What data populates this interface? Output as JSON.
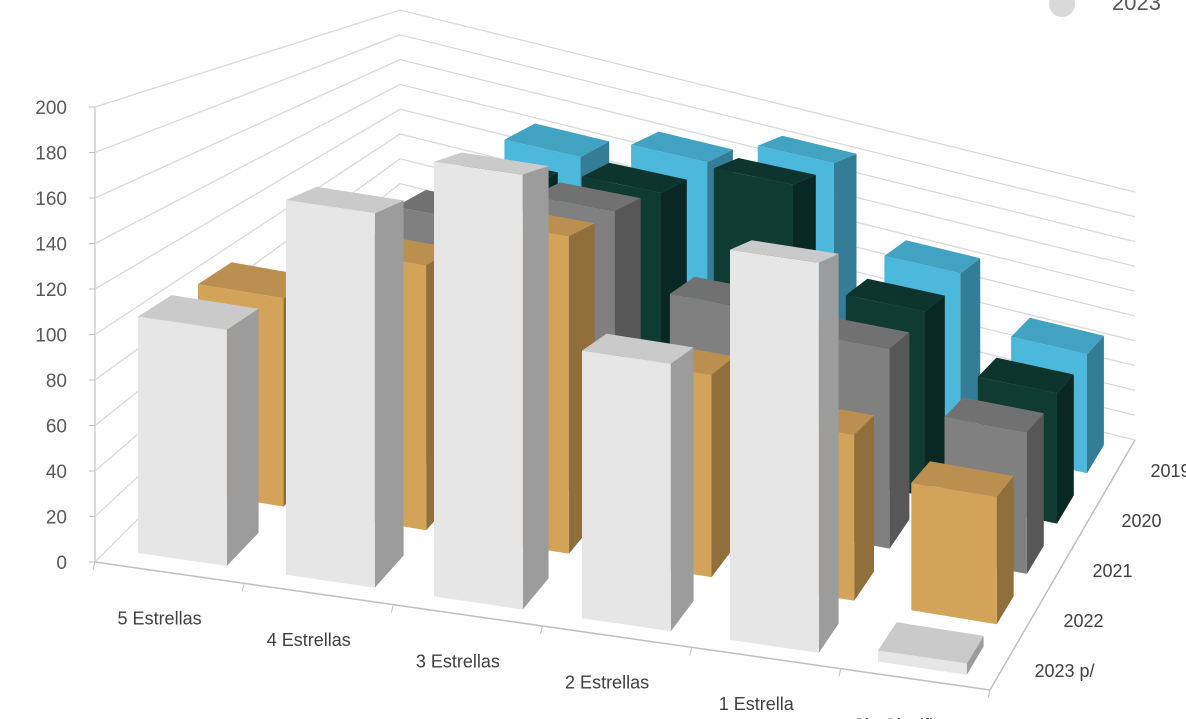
{
  "chart_data": {
    "type": "bar",
    "categories": [
      "5 Estrellas",
      "4 Estrellas",
      "3 Estrellas",
      "2 Estrellas",
      "1 Estrella",
      "Sin Clasificar"
    ],
    "series": [
      {
        "name": "2019",
        "values": [
          null,
          143,
          160,
          180,
          122,
          85
        ],
        "color": "#4bb8dc"
      },
      {
        "name": "2020",
        "values": [
          null,
          141,
          155,
          177,
          115,
          81
        ],
        "color": "#0f3b33"
      },
      {
        "name": "2021",
        "values": [
          null,
          138,
          158,
          118,
          110,
          78
        ],
        "color": "#808080"
      },
      {
        "name": "2022",
        "values": [
          103,
          131,
          157,
          100,
          82,
          63
        ],
        "color": "#d4a35a"
      },
      {
        "name": "2023 p/",
        "values": [
          106,
          168,
          195,
          120,
          175,
          5
        ],
        "color": "#e6e6e6"
      }
    ],
    "y_ticks": [
      "0",
      "20",
      "40",
      "60",
      "80",
      "100",
      "120",
      "140",
      "160",
      "180",
      "200"
    ],
    "ylim": [
      0,
      200
    ],
    "legend_partial": "2023",
    "grid": true
  }
}
